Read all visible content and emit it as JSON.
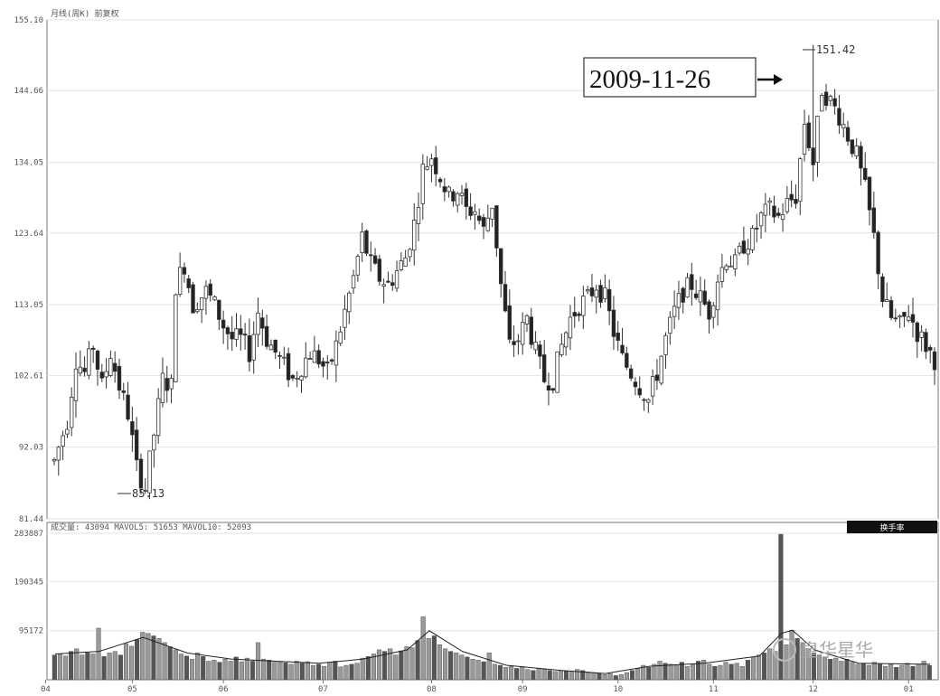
{
  "chart_data": {
    "type": "candlestick",
    "price_header": "月线(周K) 前复权",
    "volume_header": "成交量: 43094  MAVOL5: 51653  MAVOL10: 52093",
    "volume_button": "换手率",
    "price_ticks": [
      "155.10",
      "144.66",
      "134.05",
      "123.64",
      "113.05",
      "102.61",
      "92.03",
      "81.44"
    ],
    "price_ylim": [
      81.44,
      155.1
    ],
    "volume_ticks": [
      "283887",
      "190345",
      "95172"
    ],
    "volume_ylim": [
      0,
      283887
    ],
    "x_ticks": [
      {
        "label": "04",
        "index": -2
      },
      {
        "label": "05",
        "index": 18
      },
      {
        "label": "06",
        "index": 39
      },
      {
        "label": "07",
        "index": 62
      },
      {
        "label": "08",
        "index": 87
      },
      {
        "label": "09",
        "index": 108
      },
      {
        "label": "10",
        "index": 130
      },
      {
        "label": "11",
        "index": 152
      },
      {
        "label": "12",
        "index": 175
      },
      {
        "label": "01",
        "index": 197
      }
    ],
    "low_label": "85.13",
    "high_label": "151.42",
    "callout": "2009-11-26",
    "watermark": "皇华星华",
    "price_points": [
      [
        0,
        90
      ],
      [
        3,
        96
      ],
      [
        5,
        105
      ],
      [
        7,
        103
      ],
      [
        9,
        107
      ],
      [
        11,
        101
      ],
      [
        13,
        106
      ],
      [
        15,
        101
      ],
      [
        17,
        97
      ],
      [
        19,
        89
      ],
      [
        21,
        86
      ],
      [
        23,
        94
      ],
      [
        25,
        102
      ],
      [
        27,
        101
      ],
      [
        28,
        116
      ],
      [
        30,
        119
      ],
      [
        32,
        113
      ],
      [
        35,
        115
      ],
      [
        37,
        113
      ],
      [
        39,
        110
      ],
      [
        41,
        108
      ],
      [
        43,
        108
      ],
      [
        45,
        106
      ],
      [
        47,
        112
      ],
      [
        49,
        108
      ],
      [
        51,
        106
      ],
      [
        53,
        104
      ],
      [
        55,
        102
      ],
      [
        57,
        104
      ],
      [
        59,
        106
      ],
      [
        61,
        105
      ],
      [
        63,
        103
      ],
      [
        65,
        107
      ],
      [
        67,
        112
      ],
      [
        69,
        117
      ],
      [
        71,
        123
      ],
      [
        73,
        119
      ],
      [
        75,
        117
      ],
      [
        77,
        116
      ],
      [
        79,
        118
      ],
      [
        81,
        120
      ],
      [
        83,
        125
      ],
      [
        85,
        133
      ],
      [
        87,
        135
      ],
      [
        89,
        132
      ],
      [
        91,
        129
      ],
      [
        93,
        130
      ],
      [
        95,
        127
      ],
      [
        97,
        127
      ],
      [
        99,
        124
      ],
      [
        101,
        128
      ],
      [
        103,
        116
      ],
      [
        105,
        107
      ],
      [
        107,
        108
      ],
      [
        109,
        111
      ],
      [
        111,
        106
      ],
      [
        113,
        102
      ],
      [
        115,
        102
      ],
      [
        117,
        107
      ],
      [
        119,
        111
      ],
      [
        121,
        113
      ],
      [
        123,
        114
      ],
      [
        125,
        116
      ],
      [
        127,
        114
      ],
      [
        129,
        109
      ],
      [
        131,
        105
      ],
      [
        133,
        103
      ],
      [
        135,
        101
      ],
      [
        137,
        99
      ],
      [
        139,
        103
      ],
      [
        141,
        108
      ],
      [
        143,
        112
      ],
      [
        145,
        115
      ],
      [
        147,
        116
      ],
      [
        149,
        114
      ],
      [
        151,
        112
      ],
      [
        153,
        117
      ],
      [
        155,
        120
      ],
      [
        157,
        119
      ],
      [
        159,
        122
      ],
      [
        161,
        123
      ],
      [
        163,
        126
      ],
      [
        165,
        127
      ],
      [
        167,
        126
      ],
      [
        169,
        128
      ],
      [
        171,
        129
      ],
      [
        173,
        140
      ],
      [
        175,
        134
      ],
      [
        177,
        145
      ],
      [
        179,
        143
      ],
      [
        181,
        141
      ],
      [
        183,
        138
      ],
      [
        185,
        135
      ],
      [
        187,
        130
      ],
      [
        189,
        123
      ],
      [
        191,
        114
      ],
      [
        193,
        111
      ],
      [
        195,
        110
      ],
      [
        197,
        112
      ],
      [
        199,
        109
      ],
      [
        201,
        107
      ],
      [
        203,
        105
      ]
    ],
    "volume_bars": [
      [
        0,
        48
      ],
      [
        1,
        50
      ],
      [
        2,
        46
      ],
      [
        3,
        55
      ],
      [
        4,
        60
      ],
      [
        5,
        48
      ],
      [
        6,
        52
      ],
      [
        7,
        50
      ],
      [
        8,
        100
      ],
      [
        9,
        45
      ],
      [
        10,
        52
      ],
      [
        11,
        55
      ],
      [
        12,
        48
      ],
      [
        13,
        70
      ],
      [
        14,
        65
      ],
      [
        15,
        78
      ],
      [
        16,
        92
      ],
      [
        17,
        90
      ],
      [
        18,
        85
      ],
      [
        19,
        80
      ],
      [
        20,
        72
      ],
      [
        21,
        64
      ],
      [
        22,
        58
      ],
      [
        23,
        50
      ],
      [
        24,
        46
      ],
      [
        25,
        40
      ],
      [
        26,
        52
      ],
      [
        27,
        45
      ],
      [
        28,
        36
      ],
      [
        29,
        38
      ],
      [
        30,
        34
      ],
      [
        31,
        40
      ],
      [
        32,
        36
      ],
      [
        33,
        44
      ],
      [
        34,
        35
      ],
      [
        35,
        42
      ],
      [
        36,
        36
      ],
      [
        37,
        72
      ],
      [
        38,
        40
      ],
      [
        39,
        38
      ],
      [
        40,
        34
      ],
      [
        41,
        35
      ],
      [
        42,
        33
      ],
      [
        43,
        30
      ],
      [
        44,
        36
      ],
      [
        45,
        32
      ],
      [
        46,
        35
      ],
      [
        47,
        28
      ],
      [
        48,
        30
      ],
      [
        49,
        26
      ],
      [
        50,
        34
      ],
      [
        51,
        36
      ],
      [
        52,
        25
      ],
      [
        53,
        28
      ],
      [
        54,
        30
      ],
      [
        55,
        32
      ],
      [
        56,
        42
      ],
      [
        57,
        45
      ],
      [
        58,
        50
      ],
      [
        59,
        58
      ],
      [
        60,
        55
      ],
      [
        61,
        60
      ],
      [
        62,
        48
      ],
      [
        63,
        56
      ],
      [
        64,
        64
      ],
      [
        65,
        62
      ],
      [
        66,
        76
      ],
      [
        67,
        122
      ],
      [
        68,
        80
      ],
      [
        69,
        85
      ],
      [
        70,
        68
      ],
      [
        71,
        60
      ],
      [
        72,
        55
      ],
      [
        73,
        52
      ],
      [
        74,
        48
      ],
      [
        75,
        44
      ],
      [
        76,
        40
      ],
      [
        77,
        38
      ],
      [
        78,
        35
      ],
      [
        79,
        52
      ],
      [
        80,
        30
      ],
      [
        81,
        28
      ],
      [
        82,
        24
      ],
      [
        83,
        26
      ],
      [
        84,
        22
      ],
      [
        85,
        24
      ],
      [
        86,
        20
      ],
      [
        87,
        18
      ],
      [
        88,
        22
      ],
      [
        89,
        20
      ],
      [
        90,
        18
      ],
      [
        91,
        16
      ],
      [
        92,
        18
      ],
      [
        93,
        17
      ],
      [
        94,
        16
      ],
      [
        95,
        20
      ],
      [
        96,
        18
      ],
      [
        97,
        15
      ],
      [
        98,
        14
      ],
      [
        99,
        12
      ],
      [
        100,
        10
      ],
      [
        101,
        12
      ],
      [
        102,
        8
      ],
      [
        103,
        10
      ],
      [
        104,
        14
      ],
      [
        105,
        18
      ],
      [
        106,
        22
      ],
      [
        107,
        28
      ],
      [
        108,
        24
      ],
      [
        109,
        30
      ],
      [
        110,
        36
      ],
      [
        111,
        32
      ],
      [
        112,
        30
      ],
      [
        113,
        28
      ],
      [
        114,
        34
      ],
      [
        115,
        26
      ],
      [
        116,
        30
      ],
      [
        117,
        36
      ],
      [
        118,
        38
      ],
      [
        119,
        30
      ],
      [
        120,
        26
      ],
      [
        121,
        28
      ],
      [
        122,
        34
      ],
      [
        123,
        30
      ],
      [
        124,
        32
      ],
      [
        125,
        26
      ],
      [
        126,
        38
      ],
      [
        127,
        44
      ],
      [
        128,
        48
      ],
      [
        129,
        52
      ],
      [
        130,
        60
      ],
      [
        131,
        55
      ],
      [
        132,
        282
      ],
      [
        133,
        68
      ],
      [
        134,
        96
      ],
      [
        135,
        80
      ],
      [
        136,
        72
      ],
      [
        137,
        60
      ],
      [
        138,
        52
      ],
      [
        139,
        48
      ],
      [
        140,
        44
      ],
      [
        141,
        40
      ],
      [
        142,
        42
      ],
      [
        143,
        36
      ],
      [
        144,
        40
      ],
      [
        145,
        34
      ],
      [
        146,
        30
      ],
      [
        147,
        32
      ],
      [
        148,
        28
      ],
      [
        149,
        34
      ],
      [
        150,
        30
      ],
      [
        151,
        26
      ],
      [
        152,
        30
      ],
      [
        153,
        24
      ],
      [
        154,
        28
      ],
      [
        155,
        32
      ],
      [
        156,
        26
      ],
      [
        157,
        30
      ],
      [
        158,
        36
      ],
      [
        159,
        28
      ]
    ],
    "ma_short": [
      [
        0,
        50
      ],
      [
        8,
        55
      ],
      [
        16,
        82
      ],
      [
        24,
        52
      ],
      [
        32,
        40
      ],
      [
        40,
        36
      ],
      [
        48,
        32
      ],
      [
        56,
        40
      ],
      [
        64,
        58
      ],
      [
        68,
        95
      ],
      [
        74,
        55
      ],
      [
        82,
        28
      ],
      [
        92,
        18
      ],
      [
        100,
        12
      ],
      [
        108,
        26
      ],
      [
        118,
        32
      ],
      [
        128,
        46
      ],
      [
        132,
        90
      ],
      [
        134,
        96
      ],
      [
        138,
        58
      ],
      [
        146,
        32
      ],
      [
        159,
        30
      ]
    ]
  }
}
